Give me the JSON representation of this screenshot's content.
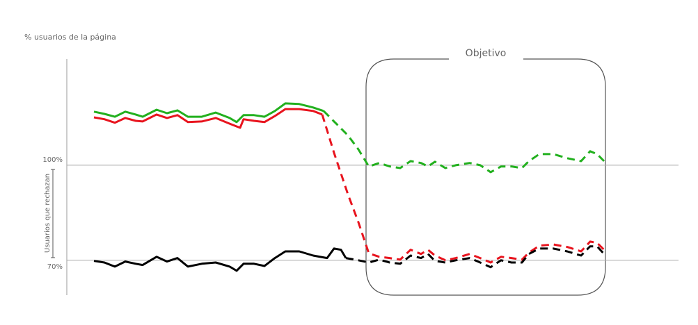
{
  "chart_data": {
    "type": "line",
    "title": "% usuarios de la página",
    "y_label": "Usuarios que rechazan",
    "annotation": "Objetivo",
    "xlim": [
      0,
      733
    ],
    "ylim": [
      59,
      133.5
    ],
    "yticks": [
      {
        "value": 100,
        "label": "100%"
      },
      {
        "value": 70,
        "label": "70%"
      }
    ],
    "grid": true,
    "series": [
      {
        "color": "#22b01e",
        "dashed": false,
        "x": [
          0,
          15,
          30,
          45,
          60,
          70,
          90,
          105,
          120,
          135,
          155,
          175,
          195,
          205,
          215,
          230,
          245,
          260,
          275,
          295,
          315,
          330
        ],
        "values": [
          116.9,
          116.2,
          115.3,
          116.9,
          116.0,
          115.3,
          117.5,
          116.4,
          117.3,
          115.3,
          115.3,
          116.6,
          114.9,
          113.6,
          115.8,
          115.8,
          115.3,
          117.1,
          119.5,
          119.3,
          118.2,
          117.1
        ]
      },
      {
        "color": "#22b01e",
        "dashed": true,
        "x": [
          330,
          345,
          365,
          380,
          395,
          410,
          425,
          440,
          455,
          470,
          480,
          490,
          505,
          520,
          540,
          555,
          570,
          585,
          600,
          615,
          625,
          640,
          660,
          680,
          700,
          713,
          723,
          733
        ],
        "values": [
          117.1,
          113.8,
          109.4,
          105.0,
          99.6,
          100.7,
          99.6,
          99.1,
          101.3,
          100.7,
          99.6,
          101.1,
          99.1,
          100,
          100.7,
          100,
          97.8,
          99.6,
          99.6,
          99.1,
          101.3,
          103.5,
          103.5,
          102.2,
          101.3,
          104.4,
          103.5,
          101.3
        ]
      },
      {
        "color": "#e8141e",
        "dashed": false,
        "x": [
          0,
          15,
          30,
          45,
          60,
          70,
          90,
          105,
          120,
          135,
          155,
          175,
          195,
          210,
          215,
          230,
          245,
          260,
          275,
          295,
          315,
          328
        ],
        "values": [
          115.1,
          114.5,
          113.4,
          114.9,
          114.0,
          113.8,
          116.0,
          114.9,
          115.8,
          113.6,
          113.8,
          114.9,
          113.1,
          111.8,
          114.5,
          114.0,
          113.6,
          115.5,
          117.7,
          117.7,
          117.1,
          116.0
        ]
      },
      {
        "color": "#e8141e",
        "dashed": true,
        "x": [
          328,
          345,
          365,
          380,
          395,
          410,
          425,
          440,
          455,
          470,
          480,
          490,
          505,
          520,
          540,
          555,
          570,
          585,
          600,
          615,
          625,
          640,
          660,
          680,
          700,
          713,
          723,
          733
        ],
        "values": [
          116.0,
          103.9,
          90.8,
          82.0,
          72.2,
          71.1,
          70.7,
          70.2,
          73.3,
          72.0,
          73.3,
          71.5,
          70.0,
          70.7,
          72.0,
          70.7,
          69.3,
          71.1,
          70.7,
          70.2,
          72.4,
          74.6,
          75.0,
          74.2,
          72.8,
          75.9,
          75.5,
          73.3
        ]
      },
      {
        "color": "#000000",
        "dashed": false,
        "x": [
          0,
          15,
          30,
          45,
          60,
          70,
          90,
          105,
          120,
          135,
          155,
          175,
          195,
          205,
          215,
          230,
          245,
          260,
          275,
          295,
          315,
          335,
          345,
          355,
          362
        ],
        "values": [
          69.8,
          69.3,
          68.0,
          69.6,
          68.9,
          68.5,
          71.1,
          69.6,
          70.7,
          68.0,
          68.9,
          69.3,
          68.0,
          66.7,
          68.9,
          68.9,
          68.2,
          70.7,
          72.8,
          72.8,
          71.5,
          70.7,
          73.7,
          73.3,
          70.7
        ]
      },
      {
        "color": "#000000",
        "dashed": true,
        "x": [
          362,
          380,
          395,
          410,
          425,
          440,
          455,
          470,
          480,
          490,
          505,
          520,
          540,
          555,
          570,
          585,
          600,
          615,
          625,
          640,
          660,
          680,
          700,
          713,
          723,
          733
        ],
        "values": [
          70.7,
          70.0,
          69.3,
          70.2,
          69.3,
          68.9,
          71.5,
          70.7,
          72.0,
          69.8,
          69.3,
          70.0,
          70.7,
          69.3,
          67.8,
          70.0,
          69.3,
          69.3,
          72.0,
          73.7,
          73.7,
          72.8,
          71.5,
          74.4,
          74.4,
          72.0
        ]
      }
    ]
  }
}
